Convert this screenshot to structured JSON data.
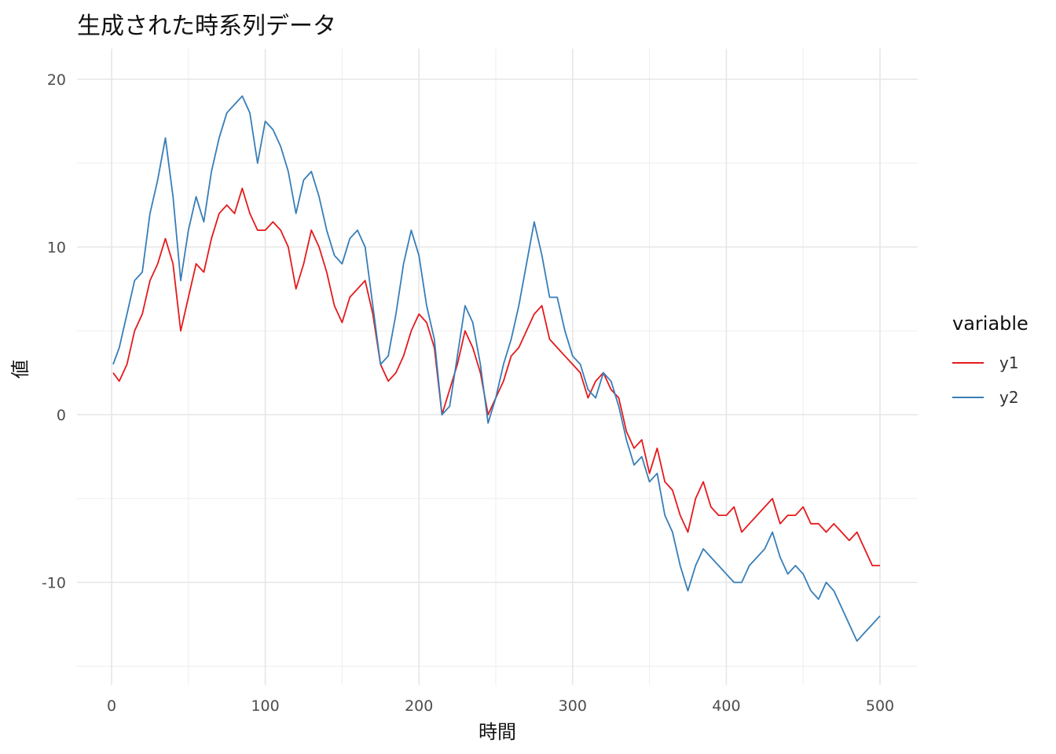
{
  "chart_data": {
    "type": "line",
    "title": "生成された時系列データ",
    "xlabel": "時間",
    "ylabel": "値",
    "xlim": [
      0,
      500
    ],
    "ylim": [
      -15,
      20.5
    ],
    "x_ticks": [
      "0",
      "100",
      "200",
      "300",
      "400",
      "500"
    ],
    "y_ticks": [
      "-10",
      "0",
      "10",
      "20"
    ],
    "grid": true,
    "legend": {
      "title": "variable",
      "placement": "right"
    },
    "x": [
      1,
      5,
      10,
      15,
      20,
      25,
      30,
      35,
      40,
      45,
      50,
      55,
      60,
      65,
      70,
      75,
      80,
      85,
      90,
      95,
      100,
      105,
      110,
      115,
      120,
      125,
      130,
      135,
      140,
      145,
      150,
      155,
      160,
      165,
      170,
      175,
      180,
      185,
      190,
      195,
      200,
      205,
      210,
      215,
      220,
      225,
      230,
      235,
      240,
      245,
      250,
      255,
      260,
      265,
      270,
      275,
      280,
      285,
      290,
      295,
      300,
      305,
      310,
      315,
      320,
      325,
      330,
      335,
      340,
      345,
      350,
      355,
      360,
      365,
      370,
      375,
      380,
      385,
      390,
      395,
      400,
      405,
      410,
      415,
      420,
      425,
      430,
      435,
      440,
      445,
      450,
      455,
      460,
      465,
      470,
      475,
      480,
      485,
      490,
      495,
      500
    ],
    "series": [
      {
        "name": "y1",
        "color": "#e41a1c",
        "values": [
          2.5,
          2.0,
          3.0,
          5.0,
          6.0,
          8.0,
          9.0,
          10.5,
          9.0,
          5.0,
          7.0,
          9.0,
          8.5,
          10.5,
          12.0,
          12.5,
          12.0,
          13.5,
          12.0,
          11.0,
          11.0,
          11.5,
          11.0,
          10.0,
          7.5,
          9.0,
          11.0,
          10.0,
          8.5,
          6.5,
          5.5,
          7.0,
          7.5,
          8.0,
          6.0,
          3.0,
          2.0,
          2.5,
          3.5,
          5.0,
          6.0,
          5.5,
          4.0,
          0.0,
          1.5,
          3.0,
          5.0,
          4.0,
          2.5,
          0.0,
          1.0,
          2.0,
          3.5,
          4.0,
          5.0,
          6.0,
          6.5,
          4.5,
          4.0,
          3.5,
          3.0,
          2.5,
          1.0,
          2.0,
          2.5,
          1.5,
          1.0,
          -1.0,
          -2.0,
          -1.5,
          -3.5,
          -2.0,
          -4.0,
          -4.5,
          -6.0,
          -7.0,
          -5.0,
          -4.0,
          -5.5,
          -6.0,
          -6.0,
          -5.5,
          -7.0,
          -6.5,
          -6.0,
          -5.5,
          -5.0,
          -6.5,
          -6.0,
          -6.0,
          -5.5,
          -6.5,
          -6.5,
          -7.0,
          -6.5,
          -7.0,
          -7.5,
          -7.0,
          -8.0,
          -9.0,
          -9.0
        ]
      },
      {
        "name": "y2",
        "color": "#377eb8",
        "values": [
          3.0,
          4.0,
          6.0,
          8.0,
          8.5,
          12.0,
          14.0,
          16.5,
          13.0,
          8.0,
          11.0,
          13.0,
          11.5,
          14.5,
          16.5,
          18.0,
          18.5,
          19.0,
          18.0,
          15.0,
          17.5,
          17.0,
          16.0,
          14.5,
          12.0,
          14.0,
          14.5,
          13.0,
          11.0,
          9.5,
          9.0,
          10.5,
          11.0,
          10.0,
          6.5,
          3.0,
          3.5,
          6.0,
          9.0,
          11.0,
          9.5,
          6.5,
          4.5,
          0.0,
          0.5,
          3.5,
          6.5,
          5.5,
          3.0,
          -0.5,
          1.0,
          3.0,
          4.5,
          6.5,
          9.0,
          11.5,
          9.5,
          7.0,
          7.0,
          5.0,
          3.5,
          3.0,
          1.5,
          1.0,
          2.5,
          2.0,
          0.5,
          -1.5,
          -3.0,
          -2.5,
          -4.0,
          -3.5,
          -6.0,
          -7.0,
          -9.0,
          -10.5,
          -9.0,
          -8.0,
          -8.5,
          -9.0,
          -9.5,
          -10.0,
          -10.0,
          -9.0,
          -8.5,
          -8.0,
          -7.0,
          -8.5,
          -9.5,
          -9.0,
          -9.5,
          -10.5,
          -11.0,
          -10.0,
          -10.5,
          -11.5,
          -12.5,
          -13.5,
          -13.0,
          -12.5,
          -12.0
        ]
      }
    ]
  }
}
